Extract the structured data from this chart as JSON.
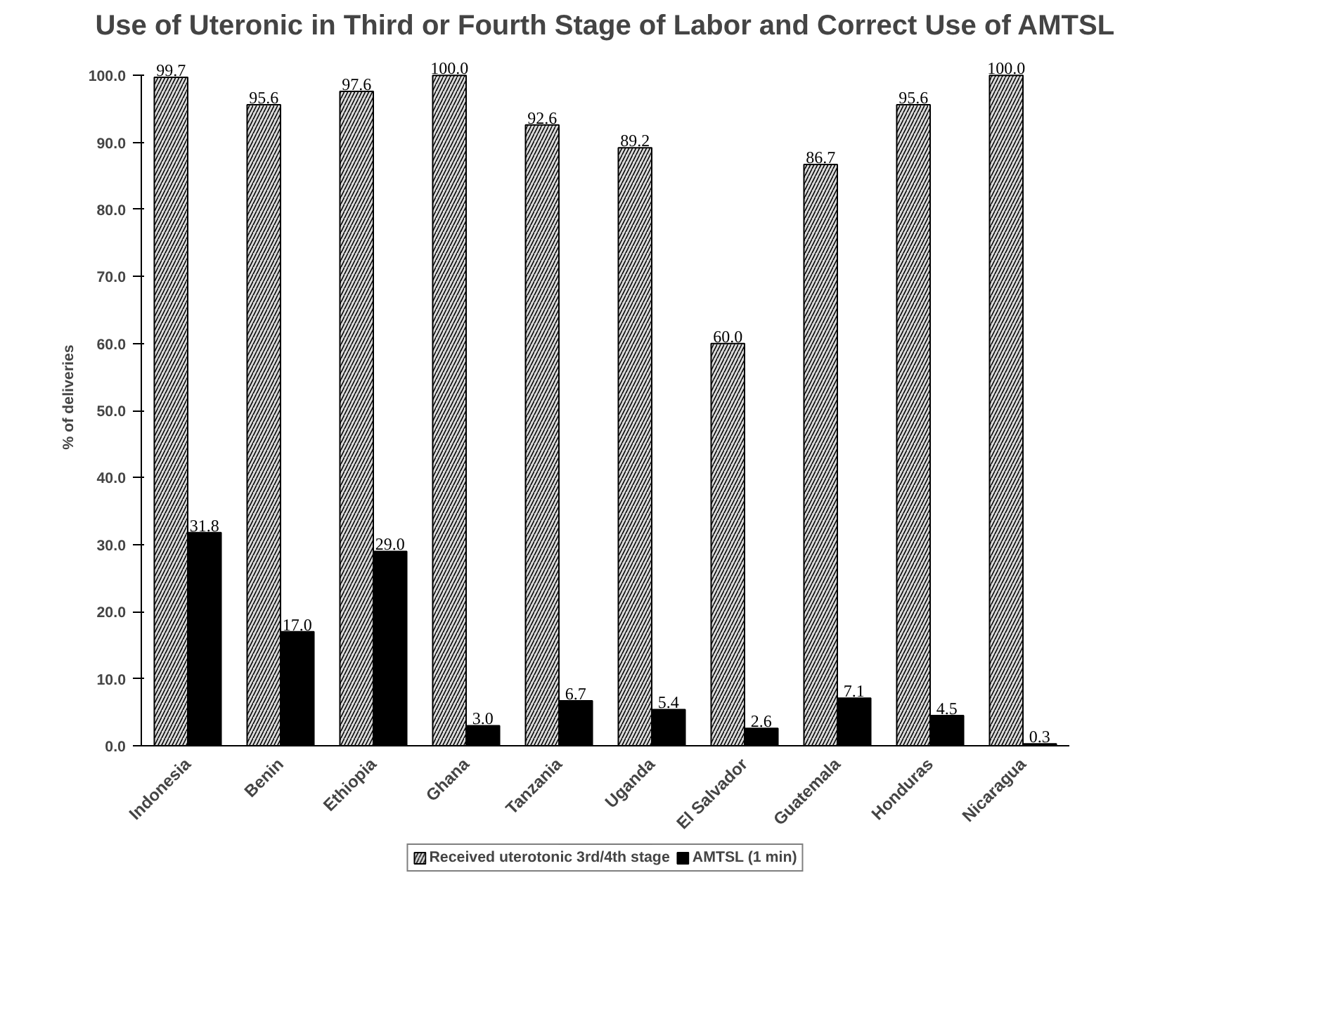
{
  "chart_data": {
    "type": "bar",
    "title": "Use of Uteronic in Third or Fourth Stage of Labor and Correct Use of AMTSL",
    "ylabel": "% of deliveries",
    "categories": [
      "Indonesia",
      "Benin",
      "Ethiopia",
      "Ghana",
      "Tanzania",
      "Uganda",
      "El Salvador",
      "Guatemala",
      "Honduras",
      "Nicaragua"
    ],
    "series": [
      {
        "name": "Received uterotonic 3rd/4th stage",
        "color": "#d9d9d9",
        "values": [
          99.7,
          95.6,
          97.6,
          100.0,
          92.6,
          89.2,
          60.0,
          86.7,
          95.6,
          100.0
        ],
        "value_labels": [
          "99.7",
          "95.6",
          "97.6",
          "100.0",
          "92.6",
          "89.2",
          "60.0",
          "86.7",
          "95.6",
          "100.0"
        ]
      },
      {
        "name": "AMTSL (1 min)",
        "color": "#000000",
        "values": [
          31.8,
          17.0,
          29.0,
          3.0,
          6.7,
          5.4,
          2.6,
          7.1,
          4.5,
          0.3
        ],
        "value_labels": [
          "31.8",
          "17.0",
          "29.0",
          "3.0",
          "6.7",
          "5.4",
          "2.6",
          "7.1",
          "4.5",
          "0.3"
        ]
      }
    ],
    "ylim": [
      0,
      100
    ],
    "yticks": [
      {
        "value": 0,
        "label": "0.0"
      },
      {
        "value": 10,
        "label": "10.0"
      },
      {
        "value": 20,
        "label": "20.0"
      },
      {
        "value": 30,
        "label": "30.0"
      },
      {
        "value": 40,
        "label": "40.0"
      },
      {
        "value": 50,
        "label": "50.0"
      },
      {
        "value": 60,
        "label": "60.0"
      },
      {
        "value": 70,
        "label": "70.0"
      },
      {
        "value": 80,
        "label": "80.0"
      },
      {
        "value": 90,
        "label": "90.0"
      },
      {
        "value": 100,
        "label": "100.0"
      }
    ],
    "legend": "bottom",
    "grid": false
  }
}
